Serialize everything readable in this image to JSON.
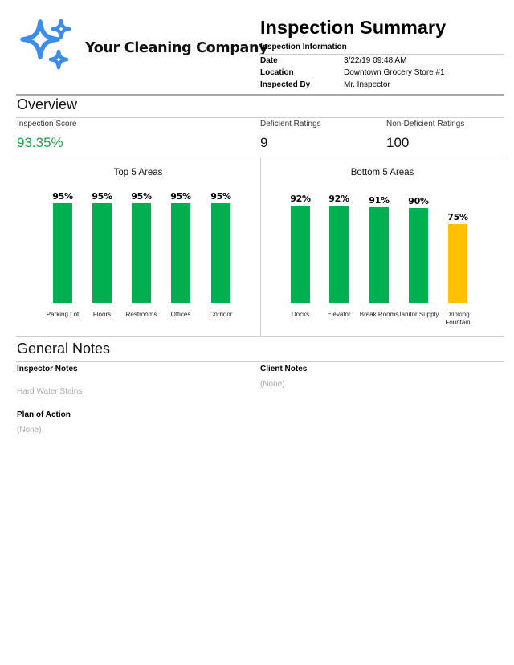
{
  "header": {
    "company_name": "Your Cleaning Company",
    "logo_icon": "sparkle-stars-icon",
    "brand_color": "#3d8de8",
    "title": "Inspection Summary",
    "info_heading": "Inspection Information",
    "info": [
      {
        "label": "Date",
        "value": "3/22/19 09:48 AM"
      },
      {
        "label": "Location",
        "value": "Downtown Grocery Store #1"
      },
      {
        "label": "Inspected By",
        "value": "Mr. Inspector"
      }
    ]
  },
  "overview": {
    "title": "Overview",
    "stats": [
      {
        "label": "Inspection Score",
        "value": "93.35%"
      },
      {
        "label": "Deficient Ratings",
        "value": "9"
      },
      {
        "label": "Non-Deficient Ratings",
        "value": "100"
      }
    ],
    "score_color": "#1aa34a"
  },
  "colors": {
    "pass": "#00b050",
    "warn": "#ffc000"
  },
  "chart_data": [
    {
      "type": "bar",
      "title": "Top 5 Areas",
      "categories": [
        "Parking Lot",
        "Floors",
        "Restrooms",
        "Offices",
        "Corridor"
      ],
      "values": [
        95,
        95,
        95,
        95,
        95
      ],
      "value_labels": [
        "95%",
        "95%",
        "95%",
        "95%",
        "95%"
      ],
      "bar_colors": [
        "#00b050",
        "#00b050",
        "#00b050",
        "#00b050",
        "#00b050"
      ],
      "ylim": [
        0,
        100
      ]
    },
    {
      "type": "bar",
      "title": "Bottom 5 Areas",
      "categories": [
        "Docks",
        "Elevator",
        "Break Rooms",
        "Janitor Supply",
        "Drinking Fountain"
      ],
      "values": [
        92,
        92,
        91,
        90,
        75
      ],
      "value_labels": [
        "92%",
        "92%",
        "91%",
        "90%",
        "75%"
      ],
      "bar_colors": [
        "#00b050",
        "#00b050",
        "#00b050",
        "#00b050",
        "#ffc000"
      ],
      "ylim": [
        0,
        100
      ]
    }
  ],
  "notes": {
    "title": "General Notes",
    "inspector_notes_label": "Inspector Notes",
    "inspector_notes_value": "Hard Water Stains",
    "client_notes_label": "Client Notes",
    "client_notes_value": "(None)",
    "plan_label": "Plan of Action",
    "plan_value": "(None)"
  }
}
